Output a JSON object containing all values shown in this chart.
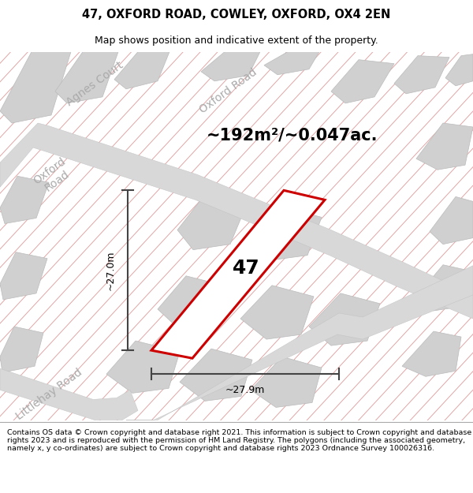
{
  "title": "47, OXFORD ROAD, COWLEY, OXFORD, OX4 2EN",
  "subtitle": "Map shows position and indicative extent of the property.",
  "area_label": "~192m²/~0.047ac.",
  "property_number": "47",
  "dim_h": "~27.0m",
  "dim_w": "~27.9m",
  "footer": "Contains OS data © Crown copyright and database right 2021. This information is subject to Crown copyright and database rights 2023 and is reproduced with the permission of HM Land Registry. The polygons (including the associated geometry, namely x, y co-ordinates) are subject to Crown copyright and database rights 2023 Ordnance Survey 100026316.",
  "map_bg": "#efefef",
  "block_color": "#d0d0d0",
  "block_edge": "#bbbbbb",
  "hatch_color": "#e8a8a8",
  "road_color": "#d8d8d8",
  "property_edge": "#cc0000",
  "property_fill": "#ffffff",
  "dim_color": "#444444",
  "label_color": "#aaaaaa",
  "title_fontsize": 10.5,
  "subtitle_fontsize": 9,
  "area_fontsize": 15,
  "number_fontsize": 18,
  "footer_fontsize": 6.8,
  "road_label_fontsize": 10,
  "agnes_label_fontsize": 10,
  "littlehay_label_fontsize": 10
}
